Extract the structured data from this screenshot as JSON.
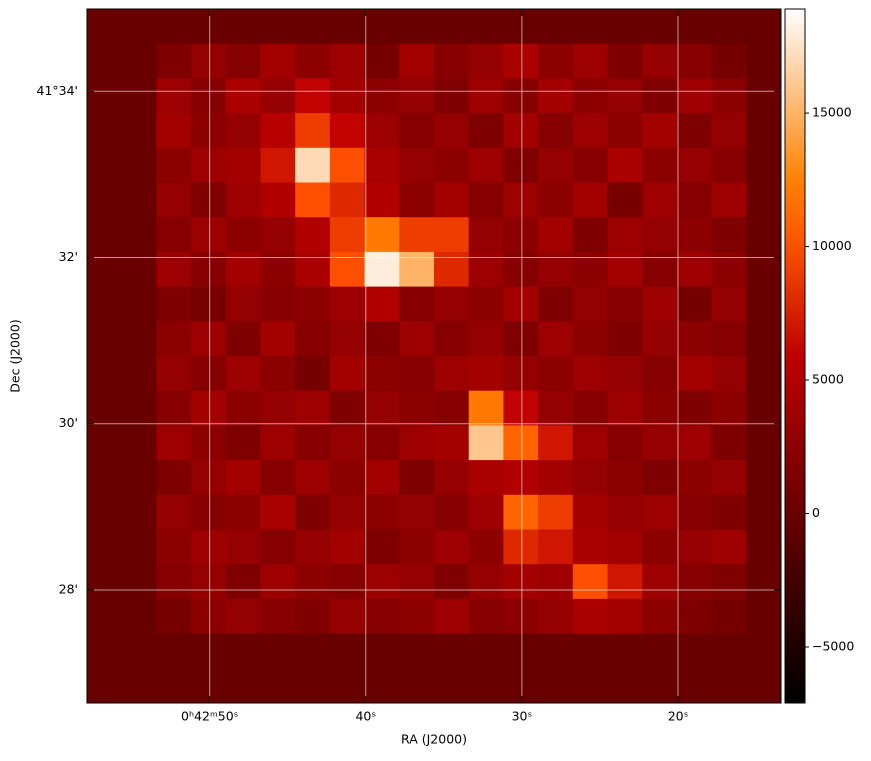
{
  "chart_data": {
    "type": "image",
    "xlabel": "RA (J2000)",
    "ylabel": "Dec (J2000)",
    "xlim": [
      57.86,
      13.4
    ],
    "ylim": [
      26.64,
      34.99
    ],
    "xticks": [
      {
        "value": 50,
        "label": "0ʰ42ᵐ50ˢ"
      },
      {
        "value": 40,
        "label": "40ˢ"
      },
      {
        "value": 30,
        "label": "30ˢ"
      },
      {
        "value": 20,
        "label": "20ˢ"
      }
    ],
    "yticks": [
      {
        "value": 34,
        "label": "41°34'"
      },
      {
        "value": 32,
        "label": "32'"
      },
      {
        "value": 30,
        "label": "30'"
      },
      {
        "value": 28,
        "label": "28'"
      }
    ],
    "grid": true,
    "colormap": "gist_heat",
    "clim": [
      -7100,
      18900
    ],
    "cticks": [
      {
        "value": -5000,
        "label": "−5000"
      },
      0,
      5000,
      10000,
      15000
    ],
    "z": [
      [
        0,
        0,
        0,
        0,
        0,
        0,
        0,
        0,
        0,
        0,
        0,
        0,
        0,
        0,
        0,
        0,
        0,
        0,
        0,
        0
      ],
      [
        0,
        0,
        1500,
        3000,
        2000,
        4000,
        2500,
        3500,
        1000,
        4000,
        2000,
        3000,
        4500,
        2500,
        3500,
        1500,
        3000,
        2000,
        1000,
        0
      ],
      [
        0,
        0,
        3500,
        2000,
        4500,
        3000,
        6000,
        4000,
        2500,
        3000,
        1500,
        3500,
        2000,
        4000,
        2500,
        3000,
        1500,
        3500,
        2500,
        0
      ],
      [
        0,
        0,
        4000,
        2500,
        3000,
        5500,
        9000,
        6000,
        3500,
        2000,
        3000,
        1500,
        4000,
        2000,
        3500,
        2500,
        4000,
        1500,
        3000,
        0
      ],
      [
        0,
        0,
        2500,
        3500,
        4000,
        7000,
        17000,
        10000,
        4500,
        3000,
        2500,
        3500,
        1500,
        3000,
        2000,
        4500,
        2500,
        3000,
        2000,
        0
      ],
      [
        0,
        0,
        3000,
        1500,
        3500,
        5000,
        10000,
        8000,
        5000,
        2500,
        4000,
        2000,
        3500,
        2500,
        4000,
        1000,
        3500,
        2000,
        3500,
        0
      ],
      [
        0,
        0,
        2000,
        3500,
        2500,
        3000,
        5000,
        9000,
        12000,
        9000,
        9000,
        3000,
        2500,
        4000,
        1500,
        3500,
        3000,
        2500,
        1500,
        0
      ],
      [
        0,
        0,
        3500,
        2000,
        4000,
        2500,
        4500,
        10000,
        18000,
        15000,
        8000,
        3500,
        2000,
        3000,
        2500,
        4000,
        2000,
        3500,
        2500,
        0
      ],
      [
        0,
        0,
        1500,
        1000,
        3000,
        2000,
        2500,
        3500,
        5000,
        2000,
        3000,
        2500,
        4000,
        1500,
        3000,
        2000,
        3500,
        1000,
        3000,
        0
      ],
      [
        0,
        0,
        2500,
        3500,
        1500,
        4000,
        2000,
        3000,
        1500,
        3500,
        2000,
        3000,
        1500,
        3500,
        2500,
        1500,
        3000,
        2500,
        2000,
        0
      ],
      [
        0,
        0,
        3000,
        2000,
        3500,
        2500,
        1000,
        4000,
        2500,
        2000,
        3500,
        4000,
        3000,
        2500,
        3500,
        3000,
        2000,
        4000,
        3000,
        0
      ],
      [
        0,
        0,
        2000,
        4000,
        2500,
        3000,
        3500,
        1500,
        3000,
        2500,
        2000,
        12000,
        6000,
        3000,
        2000,
        3500,
        2500,
        1500,
        2500,
        0
      ],
      [
        0,
        0,
        3500,
        2500,
        1500,
        3500,
        2000,
        3000,
        2000,
        3500,
        4000,
        16000,
        11000,
        7000,
        3500,
        2000,
        3000,
        3500,
        1500,
        0
      ],
      [
        0,
        0,
        1500,
        3000,
        4000,
        2000,
        3500,
        2500,
        4000,
        1500,
        3000,
        4500,
        5000,
        4000,
        3000,
        2500,
        1500,
        2500,
        3000,
        0
      ],
      [
        0,
        0,
        3000,
        2000,
        2500,
        4500,
        1500,
        3000,
        2500,
        3000,
        2000,
        3500,
        11000,
        9000,
        4000,
        3000,
        3500,
        2000,
        1500,
        0
      ],
      [
        0,
        0,
        2500,
        3500,
        3000,
        2000,
        3000,
        4000,
        1500,
        2500,
        3500,
        2500,
        8000,
        7000,
        4500,
        4000,
        2500,
        3000,
        3500,
        0
      ],
      [
        0,
        0,
        2000,
        3000,
        1500,
        3500,
        2500,
        2000,
        3500,
        3000,
        1500,
        3000,
        4000,
        3500,
        10000,
        7000,
        3500,
        2000,
        1500,
        0
      ],
      [
        0,
        0,
        1000,
        2500,
        3000,
        2000,
        1500,
        3000,
        2000,
        2500,
        3500,
        2000,
        2500,
        3000,
        4500,
        4000,
        2500,
        1500,
        1000,
        0
      ],
      [
        0,
        0,
        0,
        0,
        0,
        0,
        0,
        0,
        0,
        0,
        0,
        0,
        0,
        0,
        0,
        0,
        0,
        0,
        0,
        0
      ],
      [
        0,
        0,
        0,
        0,
        0,
        0,
        0,
        0,
        0,
        0,
        0,
        0,
        0,
        0,
        0,
        0,
        0,
        0,
        0,
        0
      ]
    ]
  }
}
